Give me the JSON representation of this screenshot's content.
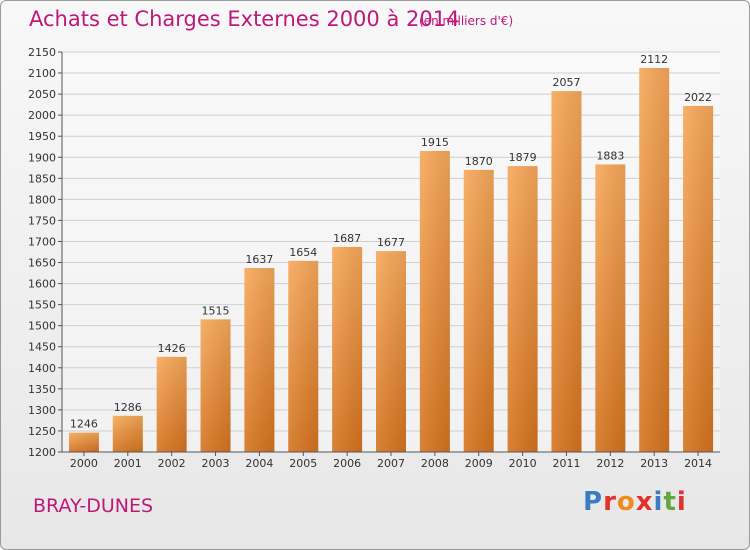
{
  "header": {
    "title": "Achats et Charges Externes 2000 à 2014",
    "subtitle": "(en milliers d'€)"
  },
  "footer": {
    "place": "BRAY-DUNES",
    "logo": "Proxiti"
  },
  "colors": {
    "title": "#c0187a",
    "bar_top": "#f7a85a",
    "bar_bottom": "#d5731e",
    "grid": "#cfcfcf",
    "logo_letters": [
      "#3a7cc4",
      "#e3312b",
      "#f08c1c",
      "#e3312b",
      "#3a7cc4",
      "#62a83a",
      "#e3312b"
    ]
  },
  "chart_data": {
    "type": "bar",
    "title": "Achats et Charges Externes 2000 à 2014",
    "subtitle": "(en milliers d'€)",
    "categories": [
      "2000",
      "2001",
      "2002",
      "2003",
      "2004",
      "2005",
      "2006",
      "2007",
      "2008",
      "2009",
      "2010",
      "2011",
      "2012",
      "2013",
      "2014"
    ],
    "values": [
      1246,
      1286,
      1426,
      1515,
      1637,
      1654,
      1687,
      1677,
      1915,
      1870,
      1879,
      2057,
      1883,
      2112,
      2022
    ],
    "ylim": [
      1200,
      2150
    ],
    "yticks": [
      1200,
      1250,
      1300,
      1350,
      1400,
      1450,
      1500,
      1550,
      1600,
      1650,
      1700,
      1750,
      1800,
      1850,
      1900,
      1950,
      2000,
      2050,
      2100,
      2150
    ],
    "grid": true,
    "legend": "none",
    "data_labels": true
  }
}
